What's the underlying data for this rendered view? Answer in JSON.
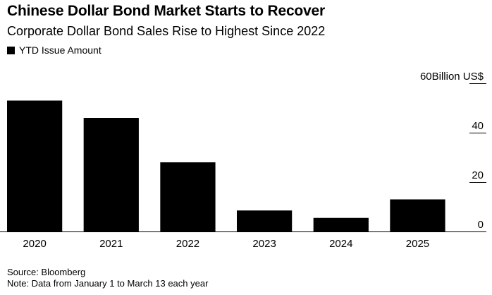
{
  "header": {
    "title": "Chinese Dollar Bond Market Starts to Recover",
    "subtitle": "Corporate Dollar Bond Sales Rise to Highest Since 2022"
  },
  "legend": {
    "label": "YTD Issue Amount",
    "color": "#000000"
  },
  "chart_data": {
    "type": "bar",
    "categories": [
      "2020",
      "2021",
      "2022",
      "2023",
      "2024",
      "2025"
    ],
    "series": [
      {
        "name": "YTD Issue Amount",
        "values": [
          53,
          46,
          28,
          8.5,
          5.5,
          13
        ],
        "color": "#000000"
      }
    ],
    "y_unit_label": "Billion US$",
    "ylim": [
      0,
      60
    ],
    "yticks": [
      0,
      20,
      40,
      60
    ],
    "y_axis_side": "right",
    "grid": false,
    "legend_position": "top-left"
  },
  "footer": {
    "source": "Source: Bloomberg",
    "note": "Note: Data from January 1 to March 13 each year"
  }
}
